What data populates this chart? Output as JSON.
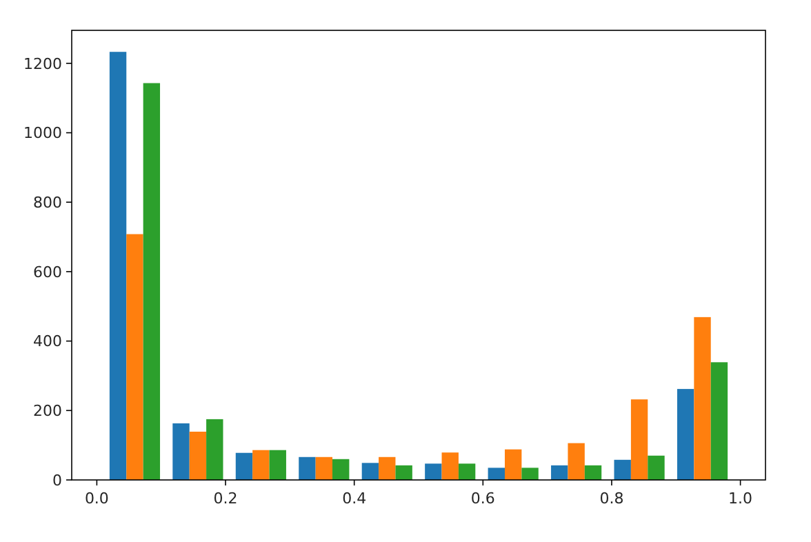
{
  "chart_data": {
    "type": "histogram",
    "bins": [
      0.01,
      0.108,
      0.206,
      0.304,
      0.402,
      0.5,
      0.598,
      0.696,
      0.794,
      0.892,
      0.99
    ],
    "series": [
      {
        "color": "#1f77b4",
        "values": [
          1233,
          163,
          78,
          66,
          49,
          47,
          35,
          42,
          58,
          262
        ]
      },
      {
        "color": "#ff7f0e",
        "values": [
          708,
          139,
          86,
          66,
          66,
          79,
          88,
          106,
          232,
          469
        ]
      },
      {
        "color": "#2ca02c",
        "values": [
          1143,
          175,
          86,
          60,
          42,
          47,
          35,
          42,
          70,
          339
        ]
      }
    ],
    "xlim": [
      -0.039,
      1.039
    ],
    "xticks": [
      {
        "value": 0,
        "label": "0.0"
      },
      0.2,
      0.4,
      0.6,
      0.8,
      {
        "value": 1,
        "label": "1.0"
      }
    ],
    "ylim": [
      0,
      1295
    ],
    "yticks": [
      0,
      200,
      400,
      600,
      800,
      1000,
      1200
    ],
    "grid": false
  }
}
